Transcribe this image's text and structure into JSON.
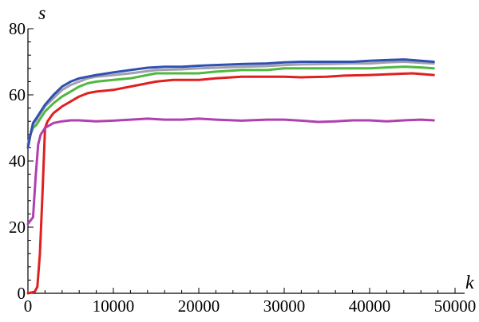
{
  "chart_data": {
    "type": "line",
    "title": "",
    "xlabel": "k",
    "ylabel": "s",
    "xlim": [
      0,
      50000
    ],
    "ylim": [
      0,
      80
    ],
    "x_ticks": [
      0,
      10000,
      20000,
      30000,
      40000,
      50000
    ],
    "x_tick_labels": [
      "0",
      "10000",
      "20000",
      "30000",
      "40000",
      "50000"
    ],
    "y_ticks": [
      0,
      20,
      40,
      60,
      80
    ],
    "y_tick_labels": [
      "0",
      "20",
      "40",
      "60",
      "80"
    ],
    "grid": false,
    "legend": "none",
    "series": [
      {
        "color": "#E02020",
        "x": [
          0,
          800,
          1100,
          1400,
          1700,
          2000,
          2300,
          2700,
          3000,
          3500,
          4000,
          5000,
          6000,
          7000,
          8000,
          10000,
          12000,
          15000,
          17000,
          20000,
          22000,
          25000,
          27000,
          30000,
          32000,
          35000,
          37000,
          40000,
          42000,
          45000,
          47500
        ],
        "y": [
          0,
          0.5,
          2,
          12,
          30,
          50,
          52,
          53.5,
          54.5,
          55.5,
          56.5,
          58,
          59.5,
          60.5,
          61,
          61.5,
          62.5,
          64,
          64.5,
          64.5,
          65,
          65.5,
          65.5,
          65.5,
          65.3,
          65.5,
          65.8,
          66,
          66.2,
          66.5,
          66
        ]
      },
      {
        "color": "#B040B0",
        "x": [
          0,
          300,
          600,
          900,
          1200,
          1500,
          2000,
          3000,
          4000,
          5000,
          6000,
          8000,
          10000,
          12000,
          14000,
          16000,
          18000,
          20000,
          22000,
          25000,
          28000,
          30000,
          32000,
          34000,
          36000,
          38000,
          40000,
          42000,
          44000,
          46000,
          47500
        ],
        "y": [
          21,
          22,
          23,
          35,
          45,
          48,
          50,
          51.5,
          52,
          52.3,
          52.3,
          52,
          52.2,
          52.5,
          52.8,
          52.5,
          52.5,
          52.8,
          52.5,
          52.2,
          52.5,
          52.5,
          52.2,
          51.8,
          52,
          52.3,
          52.3,
          52,
          52.3,
          52.5,
          52.3
        ]
      },
      {
        "color": "#50B840",
        "x": [
          0,
          300,
          600,
          1000,
          1500,
          2000,
          3000,
          4000,
          5000,
          6000,
          7000,
          8000,
          10000,
          12000,
          15000,
          18000,
          20000,
          22000,
          25000,
          28000,
          30000,
          32000,
          35000,
          38000,
          40000,
          42000,
          44000,
          46000,
          47500
        ],
        "y": [
          45,
          48,
          50,
          51,
          53,
          55,
          57.5,
          59.5,
          61,
          62.5,
          63.5,
          64,
          64.5,
          65,
          66.5,
          66.5,
          66.5,
          67,
          67.5,
          67.5,
          68,
          68,
          68,
          68,
          68,
          68.3,
          68.5,
          68.3,
          68
        ]
      },
      {
        "color": "#A0A0B0",
        "x": [
          0,
          300,
          600,
          1000,
          1500,
          2000,
          3000,
          4000,
          5000,
          6000,
          7000,
          8000,
          10000,
          12000,
          15000,
          18000,
          20000,
          22000,
          25000,
          28000,
          30000,
          32000,
          35000,
          38000,
          40000,
          42000,
          44000,
          46000,
          47500
        ],
        "y": [
          45,
          48,
          51,
          52.5,
          54.5,
          56.5,
          59,
          61.5,
          63,
          64,
          65,
          65.5,
          66,
          66.5,
          67.5,
          67.7,
          68,
          68.2,
          68.5,
          68.7,
          69,
          69.2,
          69.3,
          69.5,
          69.5,
          69.8,
          70,
          69.7,
          69.5
        ]
      },
      {
        "color": "#3050B0",
        "x": [
          0,
          300,
          600,
          1000,
          1500,
          2000,
          3000,
          4000,
          5000,
          6000,
          7000,
          8000,
          10000,
          12000,
          14000,
          16000,
          18000,
          20000,
          22000,
          25000,
          28000,
          30000,
          32000,
          35000,
          38000,
          40000,
          42000,
          44000,
          46000,
          47500
        ],
        "y": [
          44,
          48,
          51.5,
          53,
          55,
          57,
          60,
          62.5,
          64,
          65,
          65.5,
          66,
          66.8,
          67.5,
          68.2,
          68.5,
          68.5,
          68.8,
          69,
          69.3,
          69.5,
          69.8,
          70,
          70,
          70,
          70.3,
          70.5,
          70.7,
          70.3,
          70
        ]
      }
    ]
  }
}
